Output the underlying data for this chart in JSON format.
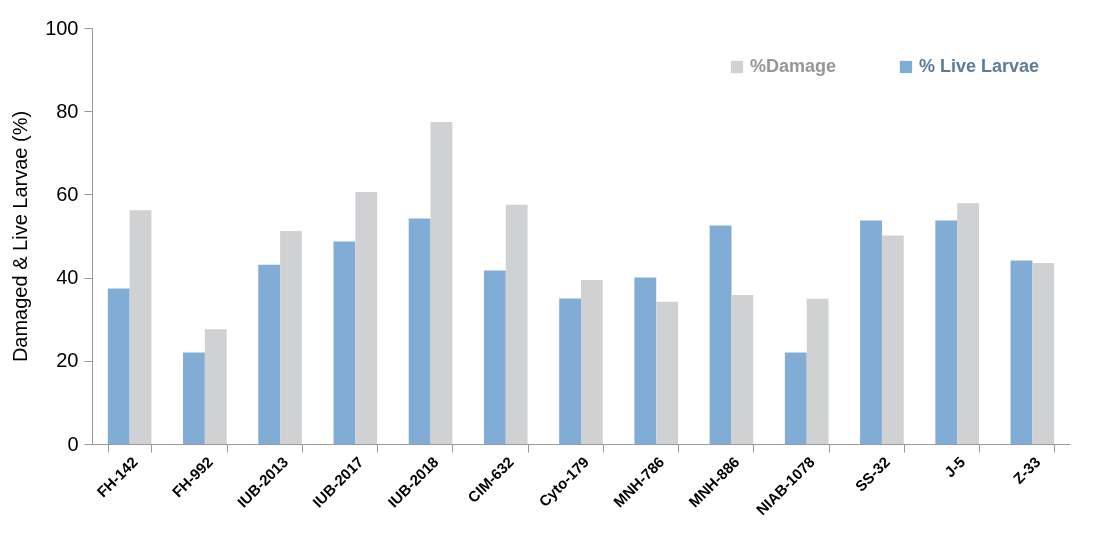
{
  "chart_data": {
    "type": "bar",
    "ylabel": "Damaged & Live Larvae (%)",
    "categories": [
      "FH-142",
      "FH-992",
      "IUB-2013",
      "IUB-2017",
      "IUB-2018",
      "CIM-632",
      "Cyto-179",
      "MNH-786",
      "MNH-886",
      "NIAB-1078",
      "SS-32",
      "J-5",
      "Z-33"
    ],
    "series": [
      {
        "name": "% Live Larvae",
        "color": "#80acd6",
        "values": [
          37.4,
          22.0,
          43.1,
          48.7,
          54.2,
          41.7,
          35.0,
          40.0,
          52.5,
          22.0,
          53.7,
          53.7,
          44.1
        ]
      },
      {
        "name": "%Damage",
        "color": "#d0d1d3",
        "values": [
          56.2,
          27.6,
          51.2,
          60.6,
          77.4,
          57.5,
          39.4,
          34.2,
          35.8,
          34.9,
          50.1,
          57.9,
          43.5
        ]
      }
    ],
    "ylim": [
      0,
      100
    ],
    "yticks": [
      0,
      20,
      40,
      60,
      80,
      100
    ],
    "grid": false,
    "legend": "top right"
  }
}
